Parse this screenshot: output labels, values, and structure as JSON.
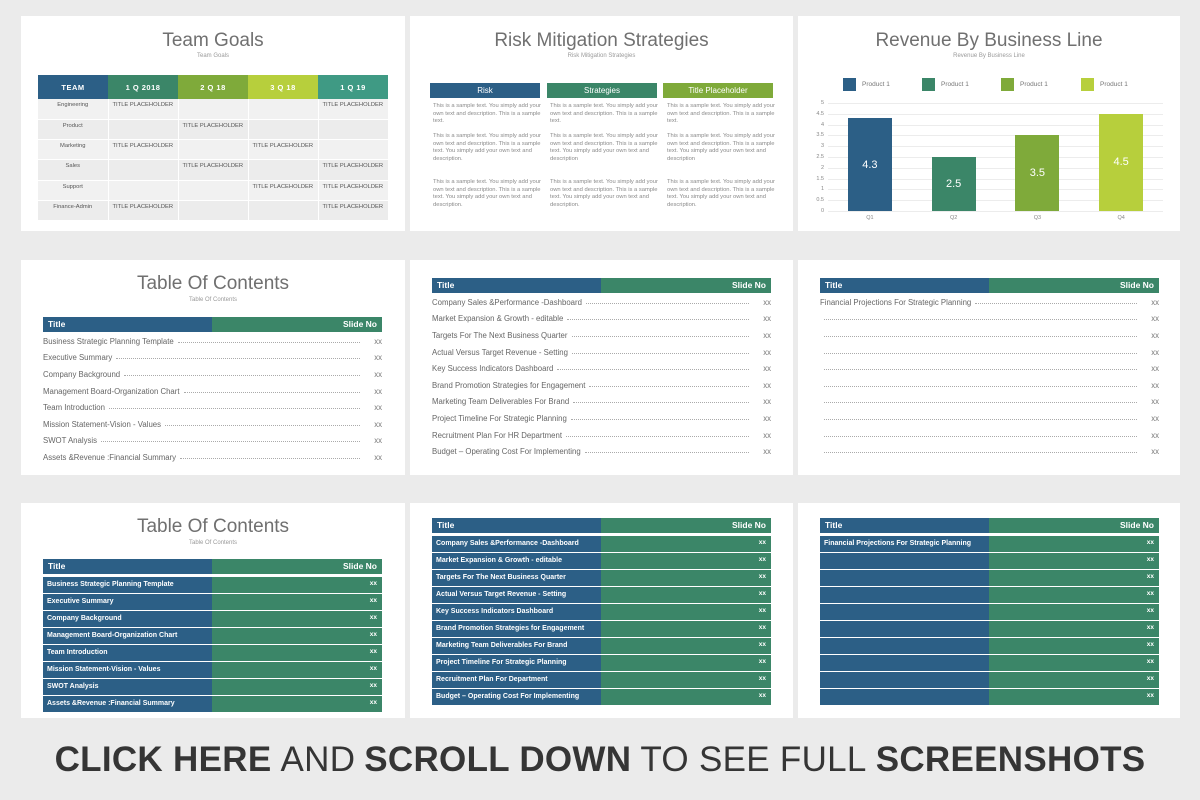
{
  "colors": {
    "navy": "#2c5f86",
    "teal": "#3b8668",
    "green": "#7faa3a",
    "lime": "#b7cf3c",
    "bg": "#ebebeb"
  },
  "team_goals": {
    "title": "Team Goals",
    "subtitle": "Team Goals",
    "headers": [
      "TEAM",
      "1 Q 2018",
      "2 Q 18",
      "3 Q 18",
      "1 Q 19"
    ],
    "rows": [
      [
        "Engineering",
        "TITLE PLACEHOLDER",
        "",
        "",
        "TITLE PLACEHOLDER"
      ],
      [
        "Product",
        "",
        "TITLE PLACEHOLDER",
        "",
        ""
      ],
      [
        "Marketing",
        "TITLE PLACEHOLDER",
        "",
        "TITLE PLACEHOLDER",
        ""
      ],
      [
        "Sales",
        "",
        "TITLE PLACEHOLDER",
        "",
        "TITLE PLACEHOLDER"
      ],
      [
        "Support",
        "",
        "",
        "TITLE PLACEHOLDER",
        "TITLE PLACEHOLDER"
      ],
      [
        "Finance-Admin",
        "TITLE PLACEHOLDER",
        "",
        "",
        "TITLE PLACEHOLDER"
      ]
    ]
  },
  "risk": {
    "title": "Risk Mitigation Strategies",
    "subtitle": "Risk Mitigation Strategies",
    "columns": [
      "Risk",
      "Strategies",
      "Title Placeholder"
    ],
    "sample": "This is a sample text. You simply add your own text and description. This is a sample text.",
    "sample_long": "This is a sample text. You simply add your own text and description. This is a sample text. You simply add your own text and description.",
    "sample_short": "This is a sample text. You simply add your own text and description. This is a sample text. You simply add your own text and description"
  },
  "revenue": {
    "title": "Revenue By Business Line",
    "subtitle": "Revenue By Business Line",
    "legend": [
      "Product 1",
      "Product 1",
      "Product 1",
      "Product 1"
    ]
  },
  "chart_data": {
    "type": "bar",
    "categories": [
      "Q1",
      "Q2",
      "Q3",
      "Q4"
    ],
    "values": [
      4.3,
      2.5,
      3.5,
      4.5
    ],
    "y_ticks": [
      "5",
      "4.5",
      "4",
      "3.5",
      "3",
      "2.5",
      "2",
      "1.5",
      "1",
      "0.5",
      "0"
    ],
    "ylim": [
      0,
      5
    ],
    "colors": [
      "#2c5f86",
      "#3b8668",
      "#7faa3a",
      "#b7cf3c"
    ],
    "legend": "top"
  },
  "toc": {
    "title": "Table Of Contents",
    "subtitle": "Table Of Contents",
    "col_title": "Title",
    "col_slide": "Slide No",
    "xx": "xx",
    "items1": [
      "Business Strategic Planning Template",
      "Executive Summary",
      "Company Background",
      "Management Board-Organization Chart",
      "Team Introduction",
      "Mission Statement-Vision - Values",
      "SWOT Analysis",
      "Assets &Revenue :Financial Summary"
    ],
    "items2": [
      "Company Sales &Performance -Dashboard",
      "Market Expansion & Growth - editable",
      "Targets For The Next Business Quarter",
      "Actual Versus Target Revenue - Setting",
      "Key Success Indicators Dashboard",
      "Brand Promotion Strategies for Engagement",
      "Marketing Team Deliverables For Brand",
      "Project Timeline For Strategic Planning",
      "Recruitment Plan For HR Department",
      "Budget – Operating Cost For Implementing"
    ],
    "items3": [
      "Financial Projections For Strategic Planning",
      "",
      "",
      "",
      "",
      "",
      "",
      "",
      "",
      ""
    ],
    "items5": [
      "Company Sales &Performance -Dashboard",
      "Market Expansion & Growth - editable",
      "Targets For The Next Business Quarter",
      "Actual Versus Target Revenue - Setting",
      "Key Success Indicators Dashboard",
      "Brand Promotion Strategies for Engagement",
      "Marketing Team Deliverables For Brand",
      "Project Timeline For Strategic Planning",
      "Recruitment Plan For Department",
      "Budget – Operating Cost For Implementing"
    ]
  },
  "banner": {
    "p1": "CLICK HERE",
    "p2": "AND",
    "p3": "SCROLL DOWN",
    "p4": "TO SEE FULL",
    "p5": "SCREENSHOTS"
  }
}
